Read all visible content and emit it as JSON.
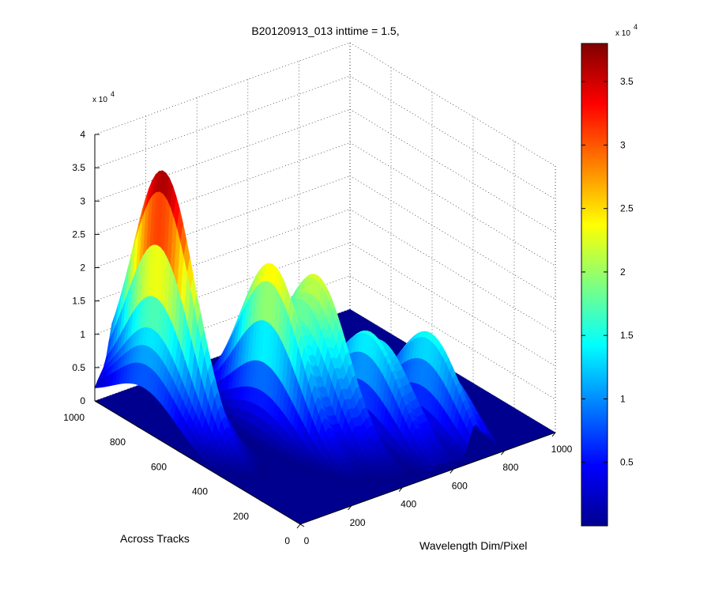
{
  "figure": {
    "background": "#ffffff"
  },
  "chart_data": {
    "type": "surface3d",
    "title": "B20120913_013 inttime = 1.5,",
    "xlabel": "Wavelength Dim/Pixel",
    "ylabel": "Across Tracks",
    "zlabel": "",
    "xlim": [
      0,
      1000
    ],
    "ylim": [
      0,
      1000
    ],
    "zlim": [
      0,
      40000
    ],
    "xticks": [
      "0",
      "200",
      "400",
      "600",
      "800",
      "1000"
    ],
    "yticks": [
      "0",
      "200",
      "400",
      "600",
      "800",
      "1000"
    ],
    "zticks": [
      "0",
      "0.5",
      "1",
      "1.5",
      "2",
      "2.5",
      "3",
      "3.5",
      "4"
    ],
    "z_exponent_label": "x 10",
    "z_exponent": "4",
    "grid": true,
    "colormap": "jet",
    "colorbar": {
      "clim": [
        0,
        38000
      ],
      "ticks": [
        "0.5",
        "1",
        "1.5",
        "2",
        "2.5",
        "3",
        "3.5"
      ],
      "exponent_label": "x 10",
      "exponent": "4"
    },
    "peaks": [
      {
        "x": 80,
        "y": 760,
        "z": 38000
      },
      {
        "x": 330,
        "y": 520,
        "z": 29000
      },
      {
        "x": 420,
        "y": 470,
        "z": 27500
      },
      {
        "x": 560,
        "y": 330,
        "z": 18500
      },
      {
        "x": 700,
        "y": 220,
        "z": 16500
      }
    ]
  }
}
